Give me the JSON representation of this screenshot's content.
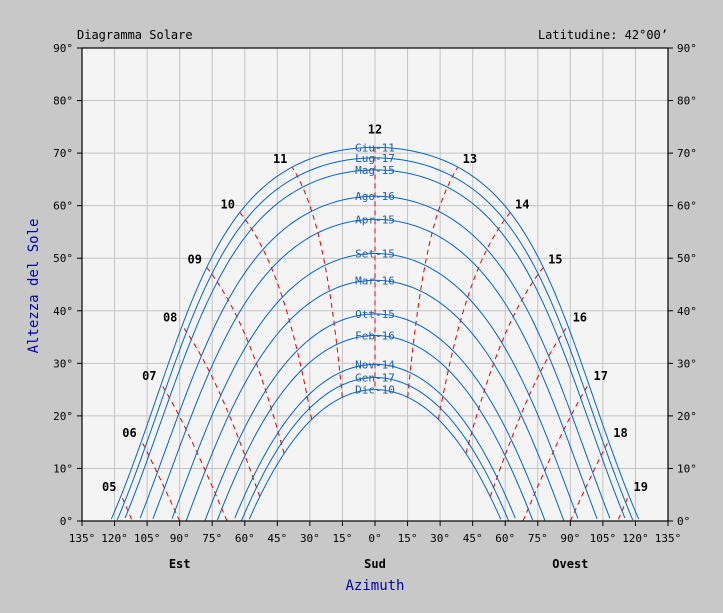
{
  "chart_data": {
    "type": "line",
    "title": "Diagramma Solare",
    "latitude_label": "Latitudine: 42°00’",
    "xlabel": "Azimuth",
    "ylabel": "Altezza del Sole",
    "xlim": [
      -135,
      135
    ],
    "ylim": [
      0,
      90
    ],
    "latitude_deg": 42.0,
    "x_ticks": [
      "135°",
      "120°",
      "105°",
      "90°",
      "75°",
      "60°",
      "45°",
      "30°",
      "15°",
      "0°",
      "15°",
      "30°",
      "45°",
      "60°",
      "75°",
      "90°",
      "105°",
      "120°",
      "135°"
    ],
    "y_ticks": [
      "0°",
      "10°",
      "20°",
      "30°",
      "40°",
      "50°",
      "60°",
      "70°",
      "80°",
      "90°"
    ],
    "direction_labels": [
      {
        "text": "Est",
        "azimuth": -90
      },
      {
        "text": "Sud",
        "azimuth": 0
      },
      {
        "text": "Ovest",
        "azimuth": 90
      }
    ],
    "grid": true,
    "date_series": [
      {
        "name": "Giu-11",
        "declination": 23.1
      },
      {
        "name": "Lug-17",
        "declination": 21.1
      },
      {
        "name": "Mag-15",
        "declination": 18.8
      },
      {
        "name": "Ago-16",
        "declination": 13.8
      },
      {
        "name": "Apr-15",
        "declination": 9.4
      },
      {
        "name": "Set-15",
        "declination": 2.9
      },
      {
        "name": "Mar-16",
        "declination": -2.2
      },
      {
        "name": "Ott-15",
        "declination": -8.6
      },
      {
        "name": "Feb-16",
        "declination": -12.7
      },
      {
        "name": "Nov-14",
        "declination": -18.2
      },
      {
        "name": "Gen-17",
        "declination": -20.7
      },
      {
        "name": "Dic-10",
        "declination": -23.0
      }
    ],
    "hour_lines": [
      "05",
      "06",
      "07",
      "08",
      "09",
      "10",
      "11",
      "12",
      "13",
      "14",
      "15",
      "16",
      "17",
      "18",
      "19"
    ],
    "colors": {
      "date_lines": "#0066cc",
      "hour_lines": "#e00000",
      "plot_bg": "#f4f4f4",
      "page_bg": "#c8c8c8"
    }
  }
}
